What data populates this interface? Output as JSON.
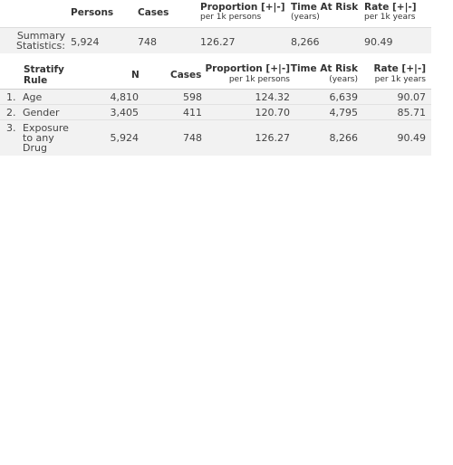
{
  "summary": {
    "headers": {
      "persons": "Persons",
      "cases": "Cases",
      "proportion": "Proportion [+|-]",
      "proportion_sub": "per 1k persons",
      "time_at_risk": "Time At Risk",
      "time_at_risk_sub": "(years)",
      "rate": "Rate [+|-]",
      "rate_sub": "per 1k years"
    },
    "row_label_line1": "Summary",
    "row_label_line2": "Statistics:",
    "values": {
      "persons": "5,924",
      "cases": "748",
      "proportion": "126.27",
      "time_at_risk": "8,266",
      "rate": "90.49"
    }
  },
  "stratify": {
    "headers": {
      "rule_line1": "Stratify",
      "rule_line2": "Rule",
      "n": "N",
      "cases": "Cases",
      "proportion": "Proportion [+|-]",
      "proportion_sub": "per 1k persons",
      "time_at_risk": "Time At Risk",
      "time_at_risk_sub": "(years)",
      "rate": "Rate [+|-]",
      "rate_sub": "per 1k years"
    },
    "rows": [
      {
        "index": "1.",
        "rule": "Age",
        "n": "4,810",
        "cases": "598",
        "proportion": "124.32",
        "time_at_risk": "6,639",
        "rate": "90.07"
      },
      {
        "index": "2.",
        "rule": "Gender",
        "n": "3,405",
        "cases": "411",
        "proportion": "120.70",
        "time_at_risk": "4,795",
        "rate": "85.71"
      },
      {
        "index": "3.",
        "rule_line1": "Exposure",
        "rule_line2": "to any",
        "rule_line3": "Drug",
        "n": "5,924",
        "cases": "748",
        "proportion": "126.27",
        "time_at_risk": "8,266",
        "rate": "90.49"
      }
    ]
  }
}
